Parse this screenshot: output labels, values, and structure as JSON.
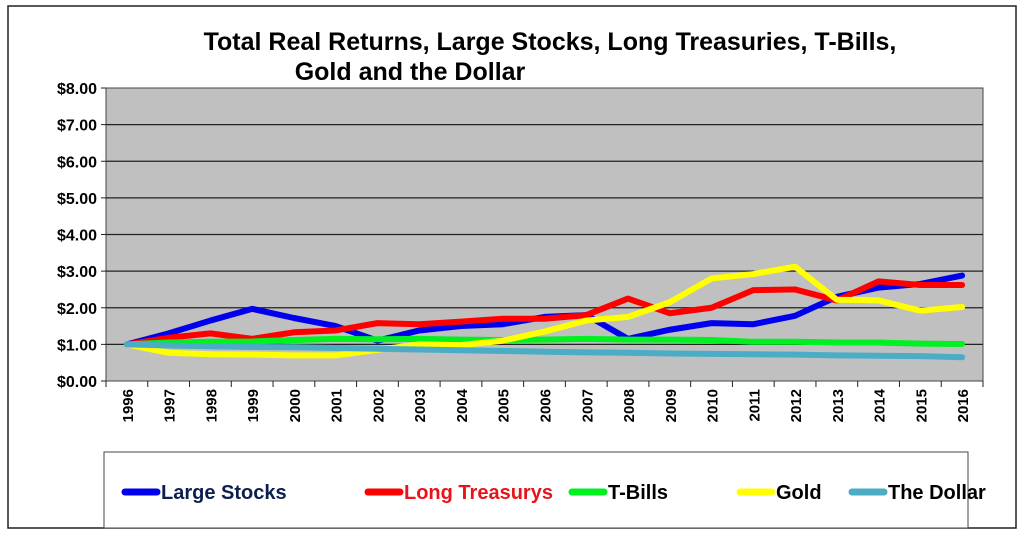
{
  "chart_data": {
    "type": "line",
    "title_lines": [
      "Total Real Returns, Large Stocks, Long Treasuries, T-Bills,",
      "Gold and the Dollar"
    ],
    "xlabel": "",
    "ylabel": "",
    "ylim": [
      0,
      8
    ],
    "yticks": [
      "$0.00",
      "$1.00",
      "$2.00",
      "$3.00",
      "$4.00",
      "$5.00",
      "$6.00",
      "$7.00",
      "$8.00"
    ],
    "grid": true,
    "legend_position": "bottom",
    "x": [
      "1996",
      "1997",
      "1998",
      "1999",
      "2000",
      "2001",
      "2002",
      "2003",
      "2004",
      "2005",
      "2006",
      "2007",
      "2008",
      "2009",
      "2010",
      "2011",
      "2012",
      "2013",
      "2014",
      "2015",
      "2016"
    ],
    "series": [
      {
        "name": "Large Stocks",
        "color": "#0000EE",
        "label_color": "#0D1F4F",
        "values": [
          1.0,
          1.3,
          1.65,
          1.97,
          1.72,
          1.5,
          1.1,
          1.38,
          1.5,
          1.55,
          1.75,
          1.8,
          1.15,
          1.4,
          1.58,
          1.55,
          1.78,
          2.3,
          2.55,
          2.65,
          2.88
        ]
      },
      {
        "name": "Long Treasurys",
        "color": "#FF0000",
        "label_color": "#E8141B",
        "values": [
          1.0,
          1.18,
          1.3,
          1.15,
          1.33,
          1.38,
          1.58,
          1.55,
          1.62,
          1.7,
          1.7,
          1.8,
          2.25,
          1.85,
          2.0,
          2.48,
          2.5,
          2.2,
          2.72,
          2.62,
          2.62
        ]
      },
      {
        "name": "T-Bills",
        "color": "#00F020",
        "label_color": "#000000",
        "values": [
          1.0,
          1.05,
          1.07,
          1.08,
          1.12,
          1.15,
          1.14,
          1.15,
          1.13,
          1.12,
          1.13,
          1.15,
          1.13,
          1.13,
          1.12,
          1.07,
          1.07,
          1.05,
          1.05,
          1.02,
          1.01
        ]
      },
      {
        "name": "Gold",
        "color": "#FFFF00",
        "label_color": "#000000",
        "values": [
          1.0,
          0.77,
          0.73,
          0.72,
          0.7,
          0.7,
          0.85,
          1.0,
          0.98,
          1.1,
          1.35,
          1.65,
          1.75,
          2.15,
          2.8,
          2.92,
          3.12,
          2.22,
          2.2,
          1.92,
          2.02
        ]
      },
      {
        "name": "The Dollar",
        "color": "#4BACC6",
        "label_color": "#000000",
        "values": [
          1.0,
          0.97,
          0.95,
          0.93,
          0.92,
          0.9,
          0.88,
          0.86,
          0.84,
          0.82,
          0.8,
          0.78,
          0.77,
          0.75,
          0.74,
          0.73,
          0.72,
          0.7,
          0.69,
          0.68,
          0.65
        ]
      }
    ]
  }
}
